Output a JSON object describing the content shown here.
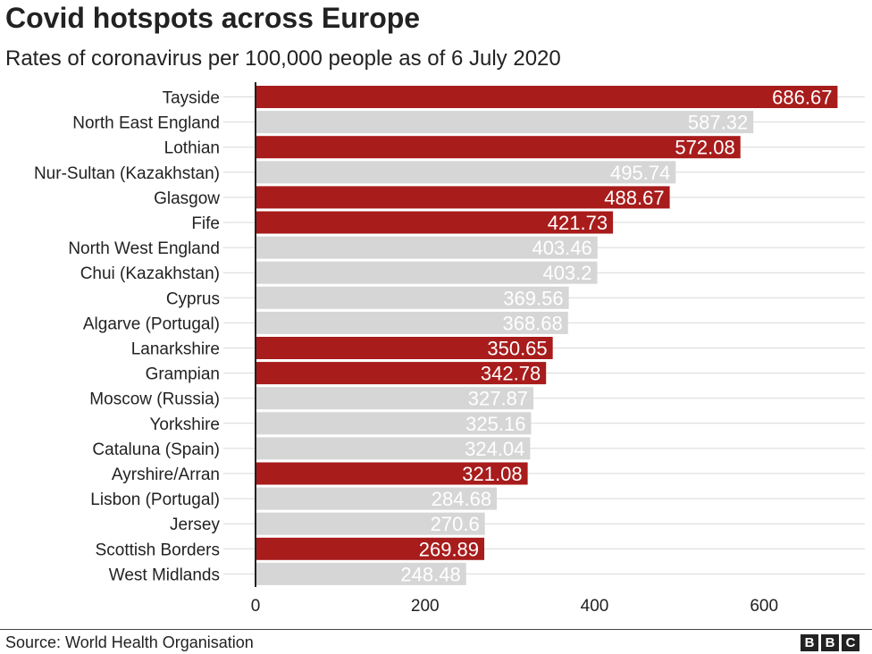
{
  "header": {
    "title": "Covid hotspots across Europe",
    "subtitle": "Rates of coronavirus per 100,000 people as of 6 July 2020"
  },
  "footer": {
    "source": "Source: World Health Organisation",
    "logo_letters": [
      "B",
      "B",
      "C"
    ]
  },
  "colors": {
    "highlight": "#a81c1c",
    "other": "#d6d6d6",
    "grid": "#d9d9d9",
    "axis": "#222222",
    "label_on_highlight": "#ffffff",
    "label_on_other": "#ffffff"
  },
  "chart_data": {
    "type": "bar",
    "orientation": "horizontal",
    "title": "Covid hotspots across Europe",
    "subtitle": "Rates of coronavirus per 100,000 people as of 6 July 2020",
    "categories": [
      "Tayside",
      "North East England",
      "Lothian",
      "Nur-Sultan (Kazakhstan)",
      "Glasgow",
      "Fife",
      "North West England",
      "Chui (Kazakhstan)",
      "Cyprus",
      "Algarve (Portugal)",
      "Lanarkshire",
      "Grampian",
      "Moscow (Russia)",
      "Yorkshire",
      "Cataluna (Spain)",
      "Ayrshire/Arran",
      "Lisbon (Portugal)",
      "Jersey",
      "Scottish Borders",
      "West Midlands"
    ],
    "values": [
      686.67,
      587.32,
      572.08,
      495.74,
      488.67,
      421.73,
      403.46,
      403.2,
      369.56,
      368.68,
      350.65,
      342.78,
      327.87,
      325.16,
      324.04,
      321.08,
      284.68,
      270.6,
      269.89,
      248.48
    ],
    "value_labels": [
      "686.67",
      "587.32",
      "572.08",
      "495.74",
      "488.67",
      "421.73",
      "403.46",
      "403.2",
      "369.56",
      "368.68",
      "350.65",
      "342.78",
      "327.87",
      "325.16",
      "324.04",
      "321.08",
      "284.68",
      "270.6",
      "269.89",
      "248.48"
    ],
    "highlighted": [
      true,
      false,
      true,
      false,
      true,
      true,
      false,
      false,
      false,
      false,
      true,
      true,
      false,
      false,
      false,
      true,
      false,
      false,
      true,
      false
    ],
    "xlim": [
      0,
      700
    ],
    "xticks": [
      0,
      200,
      400,
      600
    ],
    "xtick_labels": [
      "0",
      "200",
      "400",
      "600"
    ],
    "grid": "horizontal lines per category",
    "xlabel": "",
    "ylabel": ""
  }
}
